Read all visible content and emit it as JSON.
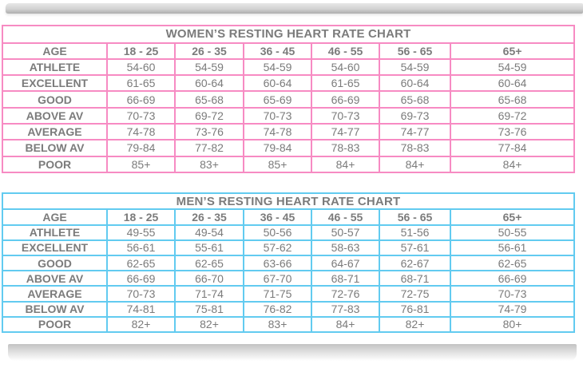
{
  "page": {
    "background": "#ffffff",
    "text_color": "#7b7b7b"
  },
  "chart_data": [
    {
      "type": "table",
      "title": "WOMEN’S RESTING HEART RATE CHART",
      "accent_color": "#f78bc3",
      "columns": [
        "AGE",
        "18 - 25",
        "26 - 35",
        "36 - 45",
        "46 - 55",
        "56 - 65",
        "65+"
      ],
      "rows": [
        {
          "label": "ATHLETE",
          "values": [
            "54-60",
            "54-59",
            "54-59",
            "54-60",
            "54-59",
            "54-59"
          ]
        },
        {
          "label": "EXCELLENT",
          "values": [
            "61-65",
            "60-64",
            "60-64",
            "61-65",
            "60-64",
            "60-64"
          ]
        },
        {
          "label": "GOOD",
          "values": [
            "66-69",
            "65-68",
            "65-69",
            "66-69",
            "65-68",
            "65-68"
          ]
        },
        {
          "label": "ABOVE AV",
          "values": [
            "70-73",
            "69-72",
            "70-73",
            "70-73",
            "69-73",
            "69-72"
          ]
        },
        {
          "label": "AVERAGE",
          "values": [
            "74-78",
            "73-76",
            "74-78",
            "74-77",
            "74-77",
            "73-76"
          ]
        },
        {
          "label": "BELOW AV",
          "values": [
            "79-84",
            "77-82",
            "79-84",
            "78-83",
            "78-83",
            "77-84"
          ]
        },
        {
          "label": "POOR",
          "values": [
            "85+",
            "83+",
            "85+",
            "84+",
            "84+",
            "84+"
          ]
        }
      ]
    },
    {
      "type": "table",
      "title": "MEN’S RESTING HEART RATE CHART",
      "accent_color": "#62cbf0",
      "columns": [
        "AGE",
        "18 - 25",
        "26 - 35",
        "36 - 45",
        "46 - 55",
        "56 - 65",
        "65+"
      ],
      "rows": [
        {
          "label": "ATHLETE",
          "values": [
            "49-55",
            "49-54",
            "50-56",
            "50-57",
            "51-56",
            "50-55"
          ]
        },
        {
          "label": "EXCELLENT",
          "values": [
            "56-61",
            "55-61",
            "57-62",
            "58-63",
            "57-61",
            "56-61"
          ]
        },
        {
          "label": "GOOD",
          "values": [
            "62-65",
            "62-65",
            "63-66",
            "64-67",
            "62-67",
            "62-65"
          ]
        },
        {
          "label": "ABOVE AV",
          "values": [
            "66-69",
            "66-70",
            "67-70",
            "68-71",
            "68-71",
            "66-69"
          ]
        },
        {
          "label": "AVERAGE",
          "values": [
            "70-73",
            "71-74",
            "71-75",
            "72-76",
            "72-75",
            "70-73"
          ]
        },
        {
          "label": "BELOW AV",
          "values": [
            "74-81",
            "75-81",
            "76-82",
            "77-83",
            "76-81",
            "74-79"
          ]
        },
        {
          "label": "POOR",
          "values": [
            "82+",
            "82+",
            "83+",
            "84+",
            "82+",
            "80+"
          ]
        }
      ]
    }
  ]
}
